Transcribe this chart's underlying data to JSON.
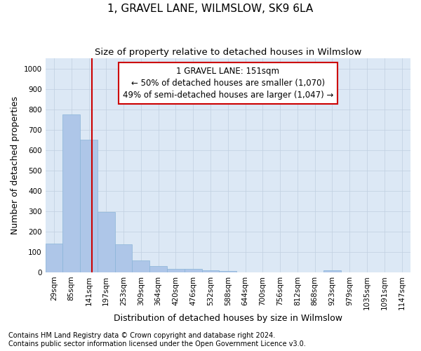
{
  "title": "1, GRAVEL LANE, WILMSLOW, SK9 6LA",
  "subtitle": "Size of property relative to detached houses in Wilmslow",
  "xlabel": "Distribution of detached houses by size in Wilmslow",
  "ylabel": "Number of detached properties",
  "categories": [
    "29sqm",
    "85sqm",
    "141sqm",
    "197sqm",
    "253sqm",
    "309sqm",
    "364sqm",
    "420sqm",
    "476sqm",
    "532sqm",
    "588sqm",
    "644sqm",
    "700sqm",
    "756sqm",
    "812sqm",
    "868sqm",
    "923sqm",
    "979sqm",
    "1035sqm",
    "1091sqm",
    "1147sqm"
  ],
  "values": [
    140,
    775,
    650,
    295,
    138,
    57,
    30,
    18,
    18,
    10,
    8,
    0,
    0,
    0,
    0,
    0,
    10,
    0,
    0,
    0,
    0
  ],
  "bar_color": "#aec6e8",
  "bar_edge_color": "#8ab4d8",
  "vline_x": 2.18,
  "annotation_line1": "1 GRAVEL LANE: 151sqm",
  "annotation_line2": "← 50% of detached houses are smaller (1,070)",
  "annotation_line3": "49% of semi-detached houses are larger (1,047) →",
  "annotation_box_color": "#ffffff",
  "annotation_box_edge_color": "#cc0000",
  "vline_color": "#cc0000",
  "ylim": [
    0,
    1050
  ],
  "yticks": [
    0,
    100,
    200,
    300,
    400,
    500,
    600,
    700,
    800,
    900,
    1000
  ],
  "bg_color": "#dce8f5",
  "fig_bg_color": "#ffffff",
  "grid_color": "#c0cfe0",
  "footer_line1": "Contains HM Land Registry data © Crown copyright and database right 2024.",
  "footer_line2": "Contains public sector information licensed under the Open Government Licence v3.0.",
  "title_fontsize": 11,
  "subtitle_fontsize": 9.5,
  "axis_label_fontsize": 9,
  "tick_fontsize": 7.5,
  "annotation_fontsize": 8.5,
  "footer_fontsize": 7
}
